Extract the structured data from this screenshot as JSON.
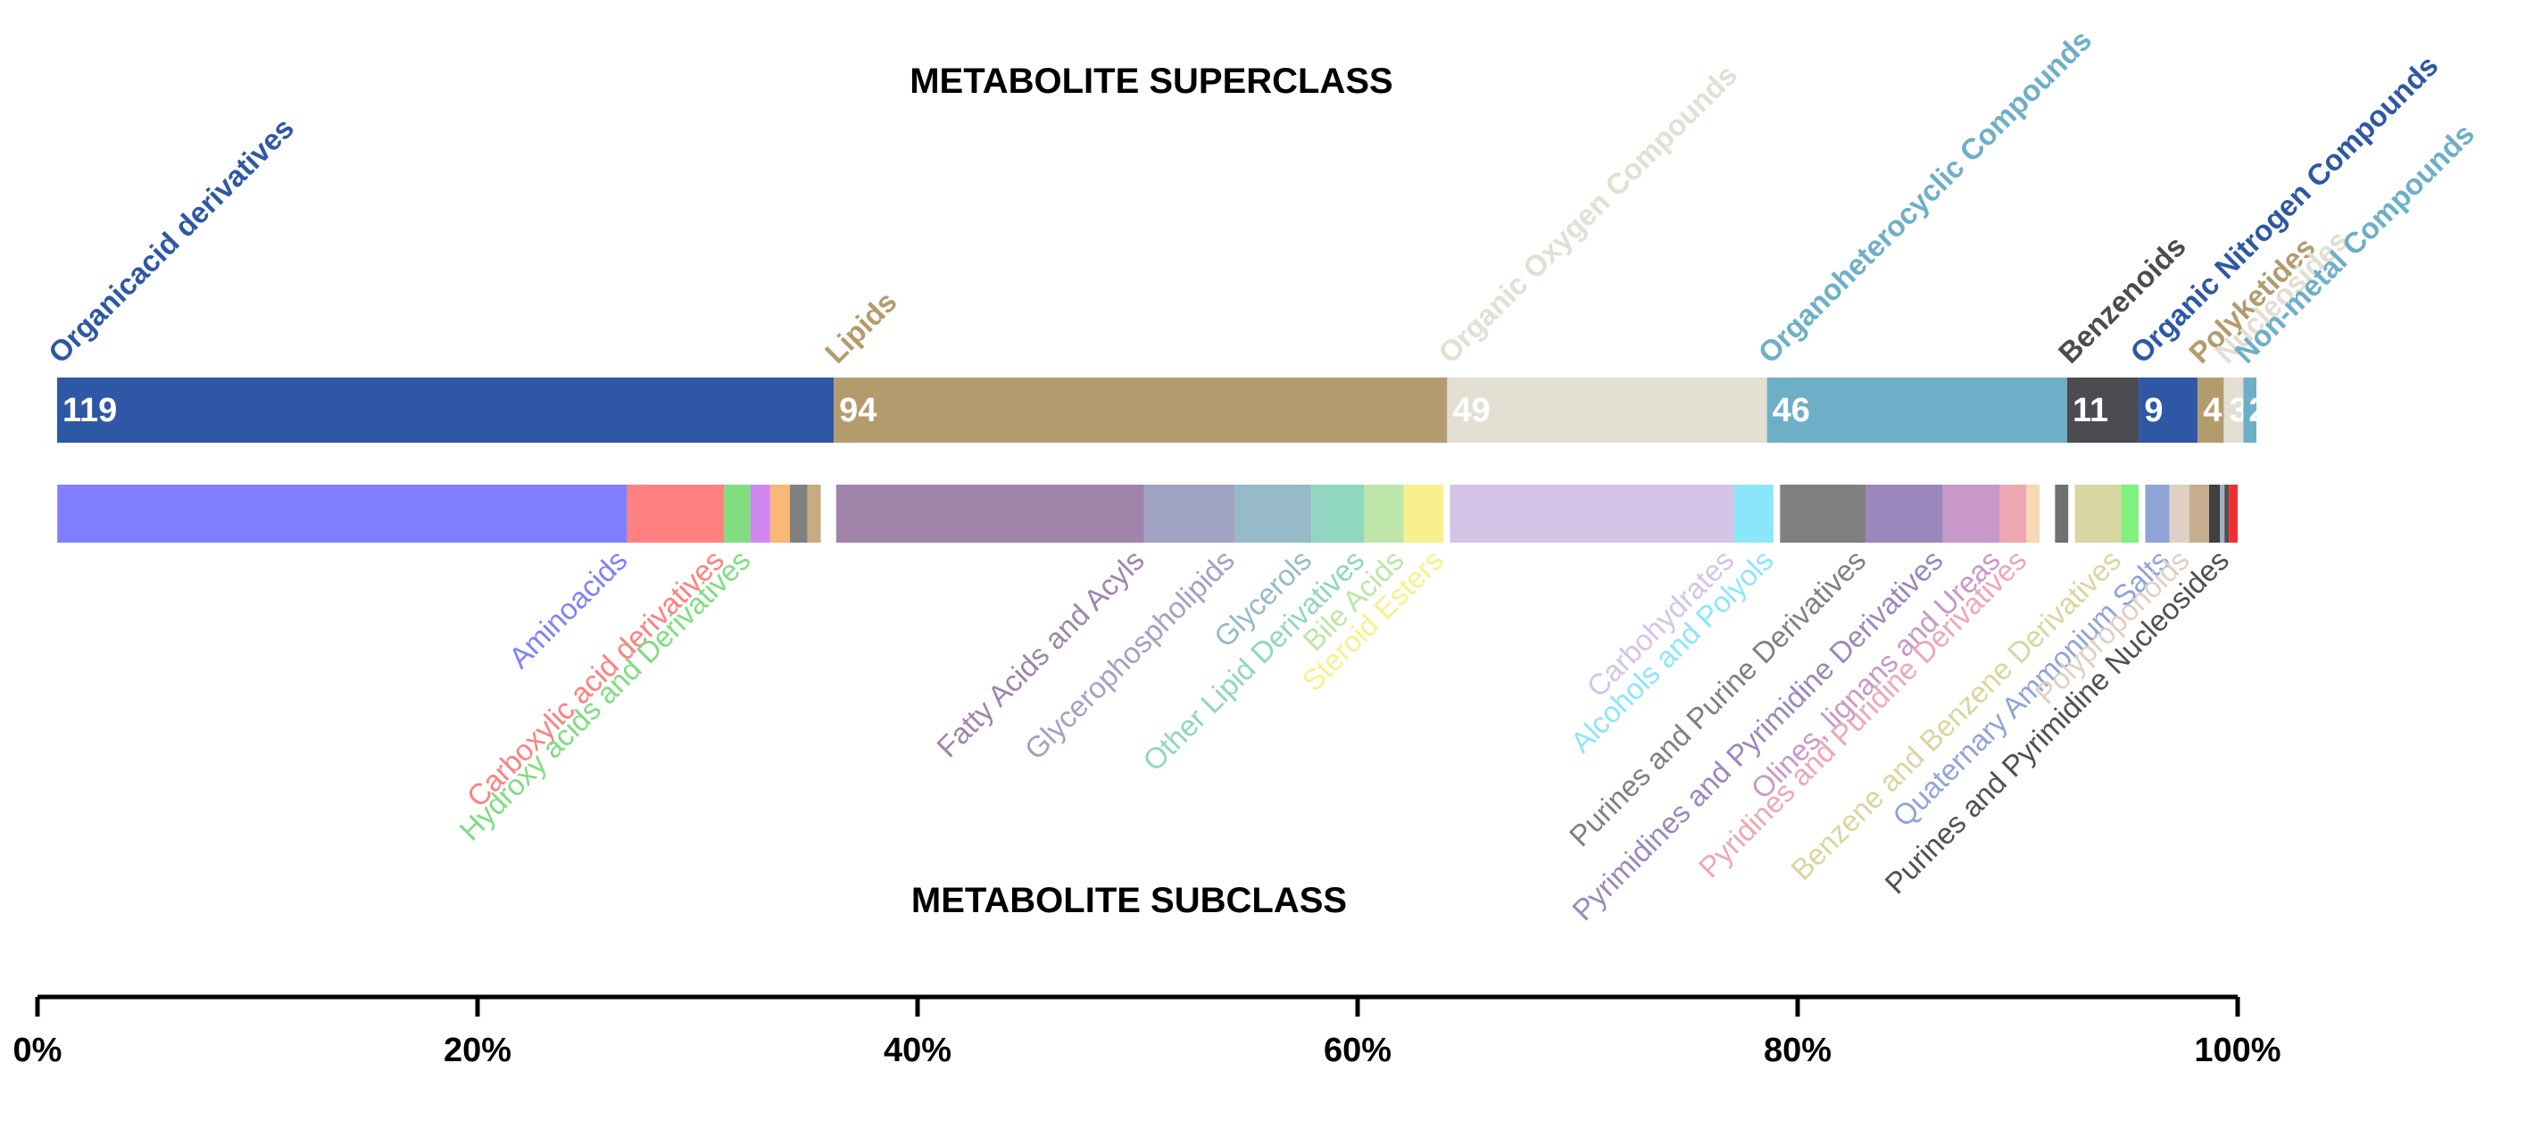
{
  "chart_data": {
    "type": "bar",
    "orientation": "horizontal-stacked-percent",
    "title": "METABOLITE SUPERCLASS",
    "subtitle": "METABOLITE SUBCLASS",
    "xlim": [
      0,
      100
    ],
    "x_ticks": [
      "0%",
      "20%",
      "40%",
      "60%",
      "80%",
      "100%"
    ],
    "superclass": [
      {
        "name": "Organicacid derivatives",
        "value": 119,
        "color": "#2E58A5"
      },
      {
        "name": "Lipids",
        "value": 94,
        "color": "#B49B6E"
      },
      {
        "name": "Organic Oxygen Compounds",
        "value": 49,
        "color": "#E3DFD3"
      },
      {
        "name": "Organoheterocyclic Compounds",
        "value": 46,
        "color": "#6EAFC8"
      },
      {
        "name": "Benzenoids",
        "value": 11,
        "color": "#4A4C52"
      },
      {
        "name": "Organic Nitrogen Compounds",
        "value": 9,
        "color": "#2E58A5"
      },
      {
        "name": "Polyketides",
        "value": 4,
        "color": "#B49B6E"
      },
      {
        "name": "Nucleosides",
        "value": 3,
        "color": "#E3DFD3"
      },
      {
        "name": "Non-metal Compounds",
        "value": 2,
        "color": "#6EAFC8"
      }
    ],
    "subclass": [
      {
        "name": "Aminoacids",
        "start": 0.9,
        "end": 26.8,
        "color": "#8080FF",
        "labeled": true
      },
      {
        "name": "Carboxylic acid derivatives",
        "start": 26.8,
        "end": 31.2,
        "color": "#FF8080",
        "labeled": true
      },
      {
        "name": "Hydroxy acids and Derivatives",
        "start": 31.2,
        "end": 32.4,
        "color": "#80DD80",
        "labeled": true
      },
      {
        "name": "",
        "start": 32.4,
        "end": 33.3,
        "color": "#D088F0",
        "labeled": false
      },
      {
        "name": "",
        "start": 33.3,
        "end": 34.2,
        "color": "#F8B878",
        "labeled": false
      },
      {
        "name": "",
        "start": 34.2,
        "end": 35.0,
        "color": "#808080",
        "labeled": false
      },
      {
        "name": "",
        "start": 35.0,
        "end": 35.6,
        "color": "#C8AA80",
        "labeled": false
      },
      {
        "name": "Fatty Acids and Acyls",
        "start": 36.3,
        "end": 50.3,
        "color": "#A084AA",
        "labeled": true
      },
      {
        "name": "Glycerophospholipids",
        "start": 50.3,
        "end": 54.4,
        "color": "#A0A2C4",
        "labeled": true
      },
      {
        "name": "Glycerols",
        "start": 54.4,
        "end": 57.9,
        "color": "#96BAC8",
        "labeled": true
      },
      {
        "name": "Other Lipid Derivatives",
        "start": 57.9,
        "end": 60.3,
        "color": "#90D6C0",
        "labeled": true
      },
      {
        "name": "Bile Acids",
        "start": 60.3,
        "end": 62.1,
        "color": "#BEE6A8",
        "labeled": true
      },
      {
        "name": "Steroid Esters",
        "start": 62.1,
        "end": 63.9,
        "color": "#F8F08C",
        "labeled": true
      },
      {
        "name": "Carbohydrates",
        "start": 64.2,
        "end": 77.1,
        "color": "#D4C4E8",
        "labeled": true
      },
      {
        "name": "Alcohols and Polyols",
        "start": 77.1,
        "end": 78.9,
        "color": "#8CE6FA",
        "labeled": true
      },
      {
        "name": "Purines and Purine Derivatives",
        "start": 79.2,
        "end": 83.1,
        "color": "#808080",
        "labeled": true
      },
      {
        "name": "Pyrimidines and Pyrimidine Derivatives",
        "start": 83.1,
        "end": 86.6,
        "color": "#9A88BC",
        "labeled": true
      },
      {
        "name": "Olines, lignans and Ureas",
        "start": 86.6,
        "end": 89.2,
        "color": "#C898C8",
        "labeled": true
      },
      {
        "name": "Pyridines and Puridine Derivatives",
        "start": 89.2,
        "end": 90.4,
        "color": "#EEA8B4",
        "labeled": true
      },
      {
        "name": "",
        "start": 90.4,
        "end": 91.0,
        "color": "#F8D8B4",
        "labeled": false
      },
      {
        "name": "",
        "start": 91.7,
        "end": 92.3,
        "color": "#707070",
        "labeled": false
      },
      {
        "name": "Benzene and Benzene Derivatives",
        "start": 92.6,
        "end": 94.7,
        "color": "#D8D6A0",
        "labeled": true
      },
      {
        "name": "",
        "start": 94.7,
        "end": 95.5,
        "color": "#80F080",
        "labeled": false
      },
      {
        "name": "Quaternary Ammonium Salts",
        "start": 95.8,
        "end": 96.9,
        "color": "#90A4D8",
        "labeled": true
      },
      {
        "name": "Polyproponoids",
        "start": 96.9,
        "end": 97.8,
        "color": "#E0D0C4",
        "labeled": true
      },
      {
        "name": "",
        "start": 97.8,
        "end": 98.7,
        "color": "#C8AE90",
        "labeled": false
      },
      {
        "name": "",
        "start": 98.7,
        "end": 99.2,
        "color": "#404040",
        "labeled": false
      },
      {
        "name": "",
        "start": 99.2,
        "end": 99.4,
        "color": "#A0B0C8",
        "labeled": false
      },
      {
        "name": "Purines and Pyrimidine Nucleosides",
        "start": 99.4,
        "end": 99.6,
        "color": "#505050",
        "labeled": true
      },
      {
        "name": "",
        "start": 99.6,
        "end": 100.0,
        "color": "#F03030",
        "labeled": false
      }
    ]
  }
}
